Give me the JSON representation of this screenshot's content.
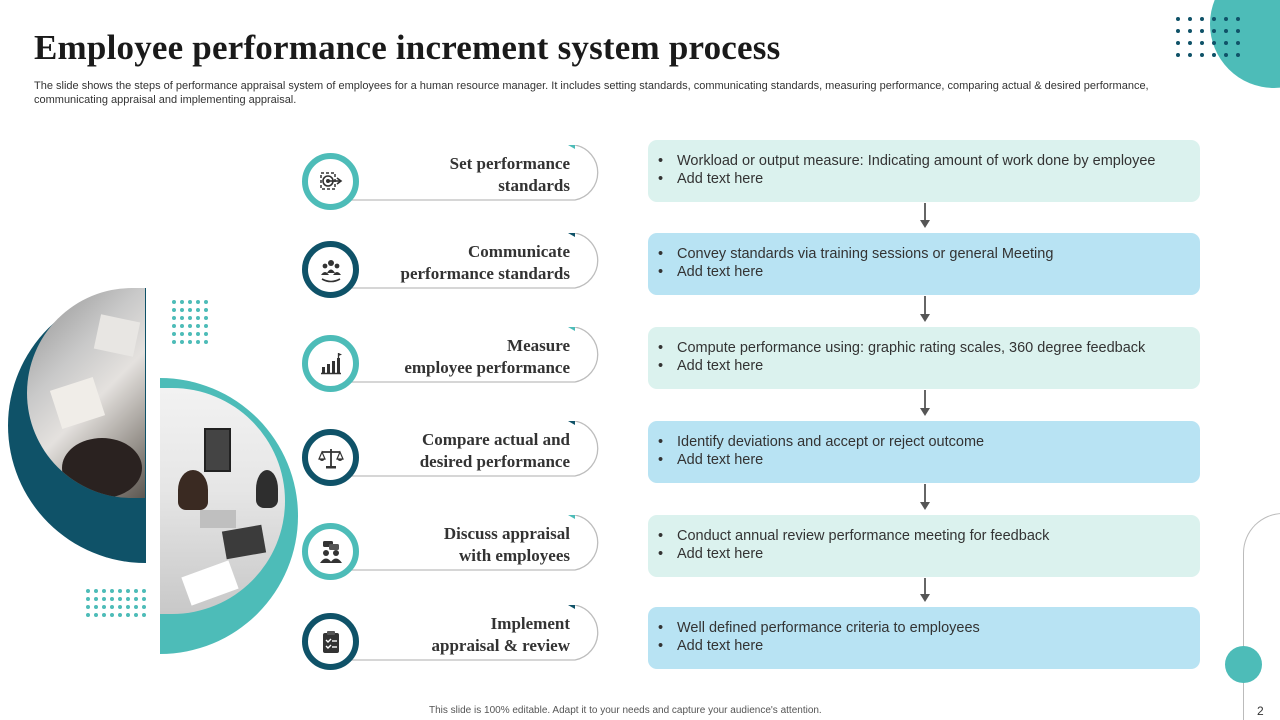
{
  "title": "Employee performance increment system process",
  "subtitle": "The slide shows the steps of performance appraisal system of employees for a human resource manager. It includes setting standards, communicating standards, measuring performance, comparing actual & desired performance, communicating appraisal and implementing appraisal.",
  "colors": {
    "teal": "#4dbcb8",
    "dark_teal": "#0f5268",
    "light_box": "#dbf2ee",
    "blue_box": "#b8e3f3"
  },
  "steps": [
    {
      "label": "Set performance standards",
      "line1": "Set performance",
      "line2": "standards",
      "icon": "target-icon",
      "ring": "teal",
      "bullets": [
        "Workload or output measure: Indicating amount of work done by employee",
        "Add text here"
      ],
      "box": "light"
    },
    {
      "label": "Communicate performance standards",
      "line1": "Communicate",
      "line2": "performance standards",
      "icon": "team-communication-icon",
      "ring": "dark",
      "bullets": [
        "Convey standards via training sessions or general Meeting",
        "Add text here"
      ],
      "box": "blue"
    },
    {
      "label": "Measure employee performance",
      "line1": "Measure",
      "line2": "employee performance",
      "icon": "growth-chart-icon",
      "ring": "teal",
      "bullets": [
        "Compute performance using: graphic rating scales, 360 degree feedback",
        "Add text here"
      ],
      "box": "light"
    },
    {
      "label": "Compare actual and desired performance",
      "line1": "Compare actual and",
      "line2": "desired performance",
      "icon": "balance-scale-icon",
      "ring": "dark",
      "bullets": [
        "Identify deviations and accept or reject outcome",
        "Add text here"
      ],
      "box": "blue"
    },
    {
      "label": "Discuss appraisal with employees",
      "line1": "Discuss appraisal",
      "line2": "with employees",
      "icon": "discussion-icon",
      "ring": "teal",
      "bullets": [
        "Conduct annual review performance meeting for feedback",
        "Add text here"
      ],
      "box": "light"
    },
    {
      "label": "Implement appraisal & review",
      "line1": "Implement",
      "line2": "appraisal & review",
      "icon": "checklist-icon",
      "ring": "dark",
      "bullets": [
        "Well defined performance criteria to employees",
        "Add text here"
      ],
      "box": "blue"
    }
  ],
  "footer": "This slide is 100% editable. Adapt it to your needs and capture your audience's attention.",
  "page_number": "2"
}
